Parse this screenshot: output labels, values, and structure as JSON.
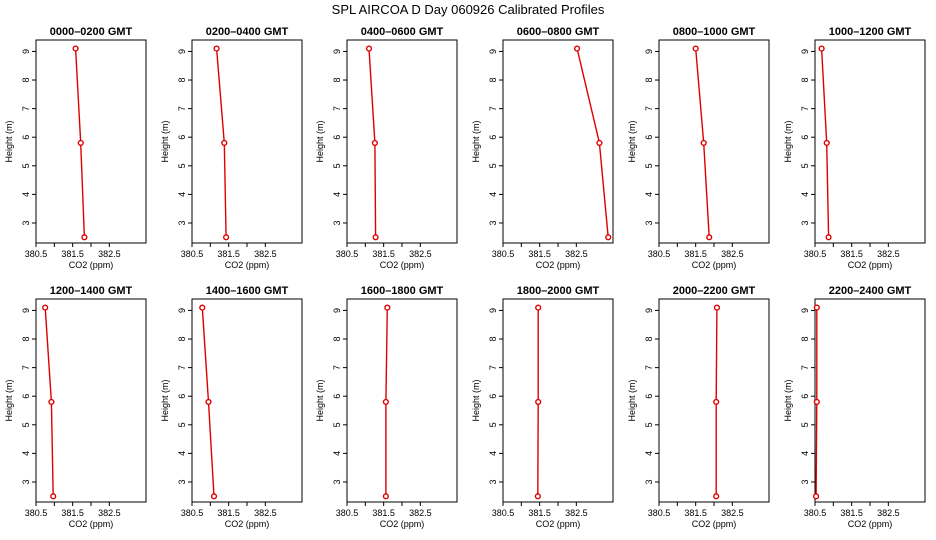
{
  "chart_data": {
    "title": "SPL AIRCOA D  Day 060926  Calibrated Profiles",
    "type": "line",
    "xlabel": "CO2 (ppm)",
    "ylabel": "Height (m)",
    "xlim": [
      380.5,
      383.5
    ],
    "ylim": [
      2.3,
      9.4
    ],
    "xticks": [
      "380.5",
      "381.5",
      "382.5"
    ],
    "xticks_unlabeled": [
      381.0,
      382.0
    ],
    "yticks": [
      "3",
      "4",
      "5",
      "6",
      "7",
      "8",
      "9"
    ],
    "heights": [
      9.1,
      5.8,
      2.5
    ],
    "color": "#dd0000",
    "panels": [
      {
        "title": "0000–0200 GMT",
        "co2": [
          381.58,
          381.72,
          381.82
        ]
      },
      {
        "title": "0200–0400 GMT",
        "co2": [
          381.17,
          381.38,
          381.43
        ]
      },
      {
        "title": "0400–0600 GMT",
        "co2": [
          381.1,
          381.26,
          381.28
        ]
      },
      {
        "title": "0600–0800 GMT",
        "co2": [
          382.52,
          383.13,
          383.37
        ]
      },
      {
        "title": "0800–1000 GMT",
        "co2": [
          381.5,
          381.72,
          381.87
        ]
      },
      {
        "title": "1000–1200 GMT",
        "co2": [
          380.68,
          380.82,
          380.87
        ]
      },
      {
        "title": "1200–1400 GMT",
        "co2": [
          380.75,
          380.92,
          380.97
        ]
      },
      {
        "title": "1400–1600 GMT",
        "co2": [
          380.78,
          380.95,
          381.1
        ]
      },
      {
        "title": "1600–1800 GMT",
        "co2": [
          381.6,
          381.56,
          381.56
        ]
      },
      {
        "title": "1800–2000 GMT",
        "co2": [
          381.46,
          381.46,
          381.45
        ]
      },
      {
        "title": "2000–2200 GMT",
        "co2": [
          382.08,
          382.06,
          382.06
        ]
      },
      {
        "title": "2200–2400 GMT",
        "co2": [
          380.55,
          380.55,
          380.53
        ]
      }
    ]
  }
}
